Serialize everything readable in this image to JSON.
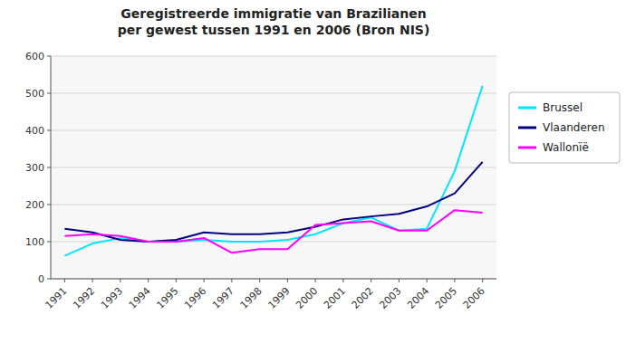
{
  "chart_data": {
    "type": "line",
    "title": "Geregistreerde immigratie van Brazilianen\nper gewest tussen 1991 en 2006 (Bron NIS)",
    "x": [
      1991,
      1992,
      1993,
      1994,
      1995,
      1996,
      1997,
      1998,
      1999,
      2000,
      2001,
      2002,
      2003,
      2004,
      2005,
      2006
    ],
    "series": [
      {
        "name": "Brussel",
        "color": "#00e5ff",
        "values": [
          62,
          95,
          110,
          100,
          100,
          105,
          100,
          100,
          105,
          120,
          150,
          165,
          130,
          135,
          290,
          520
        ]
      },
      {
        "name": "Vlaanderen",
        "color": "#000080",
        "values": [
          135,
          125,
          105,
          100,
          105,
          125,
          120,
          120,
          125,
          140,
          160,
          168,
          175,
          195,
          230,
          315
        ]
      },
      {
        "name": "Wallonïë",
        "color": "#ff00ff",
        "values": [
          115,
          120,
          115,
          100,
          100,
          110,
          70,
          80,
          80,
          145,
          150,
          155,
          130,
          130,
          185,
          178
        ]
      }
    ],
    "xlim": [
      1990.5,
      2006.5
    ],
    "xticks": [
      1991,
      1992,
      1993,
      1994,
      1995,
      1996,
      1997,
      1998,
      1999,
      2000,
      2001,
      2002,
      2003,
      2004,
      2005,
      2006
    ],
    "ylim": [
      0,
      600
    ],
    "yticks": [
      0,
      100,
      200,
      300,
      400,
      500,
      600
    ],
    "grid": true,
    "legend": "right"
  }
}
